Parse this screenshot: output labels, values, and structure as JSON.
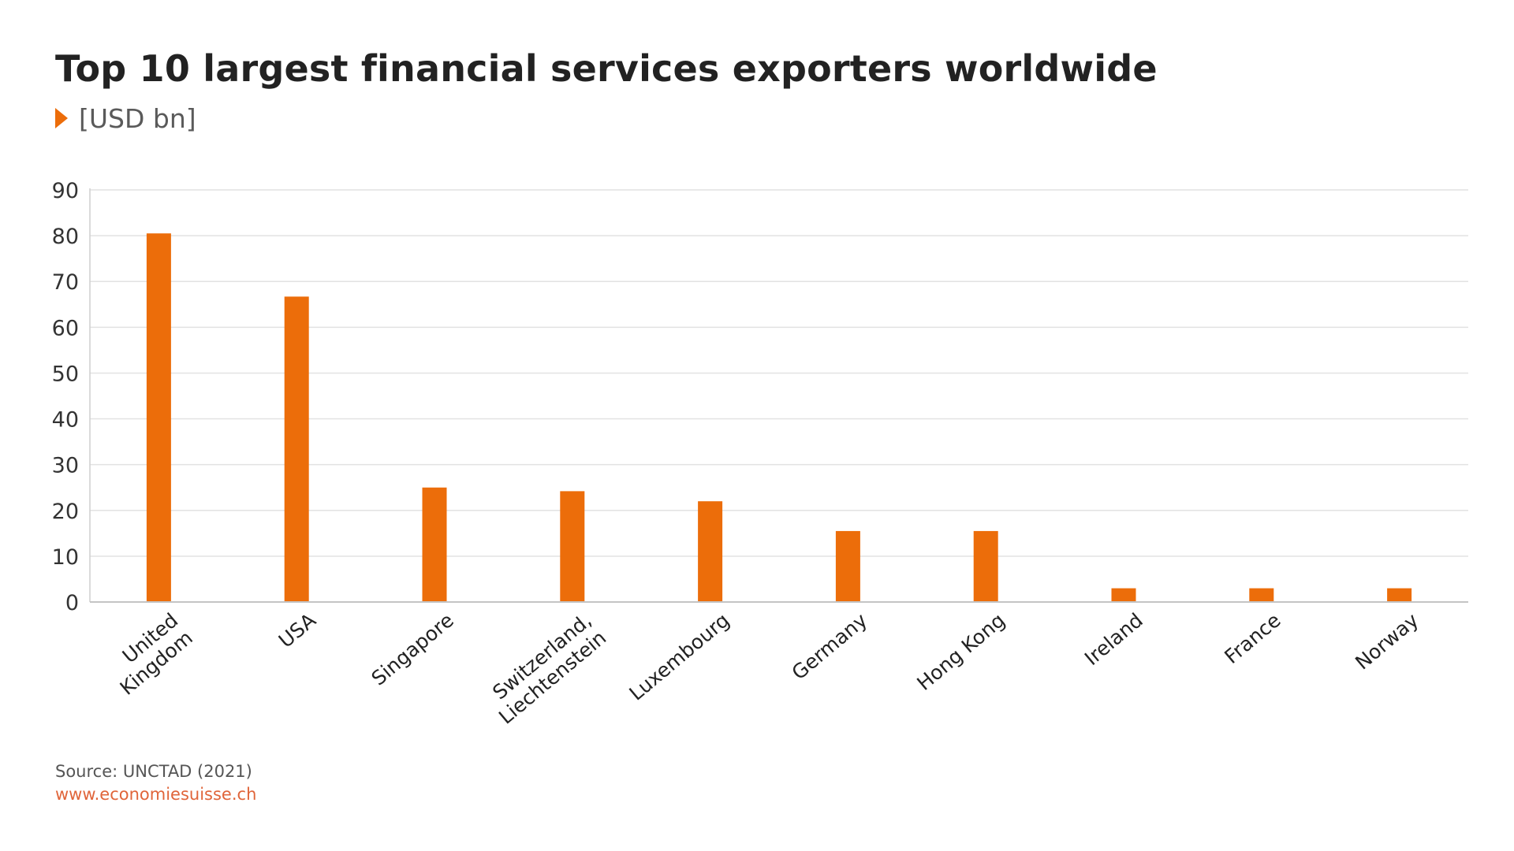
{
  "chart_data": {
    "type": "bar",
    "title": "Top 10 largest financial services exporters worldwide",
    "unit_label": "[USD bn]",
    "categories": [
      [
        "United",
        "Kingdom"
      ],
      [
        "USA"
      ],
      [
        "Singapore"
      ],
      [
        "Switzerland,",
        "Liechtenstein"
      ],
      [
        "Luxembourg"
      ],
      [
        "Germany"
      ],
      [
        "Hong Kong"
      ],
      [
        "Ireland"
      ],
      [
        "France"
      ],
      [
        "Norway"
      ]
    ],
    "values": [
      80.5,
      66.7,
      25.0,
      24.2,
      22.0,
      15.5,
      15.5,
      3.0,
      3.0,
      3.0
    ],
    "yticks": [
      0,
      10,
      20,
      30,
      40,
      50,
      60,
      70,
      80,
      90
    ],
    "ylim": [
      0,
      90
    ],
    "grid": true,
    "legend": "none",
    "bar_color": "#ec6d0a"
  },
  "footer": {
    "source": "Source: UNCTAD (2021)",
    "url": "www.economiesuisse.ch"
  }
}
